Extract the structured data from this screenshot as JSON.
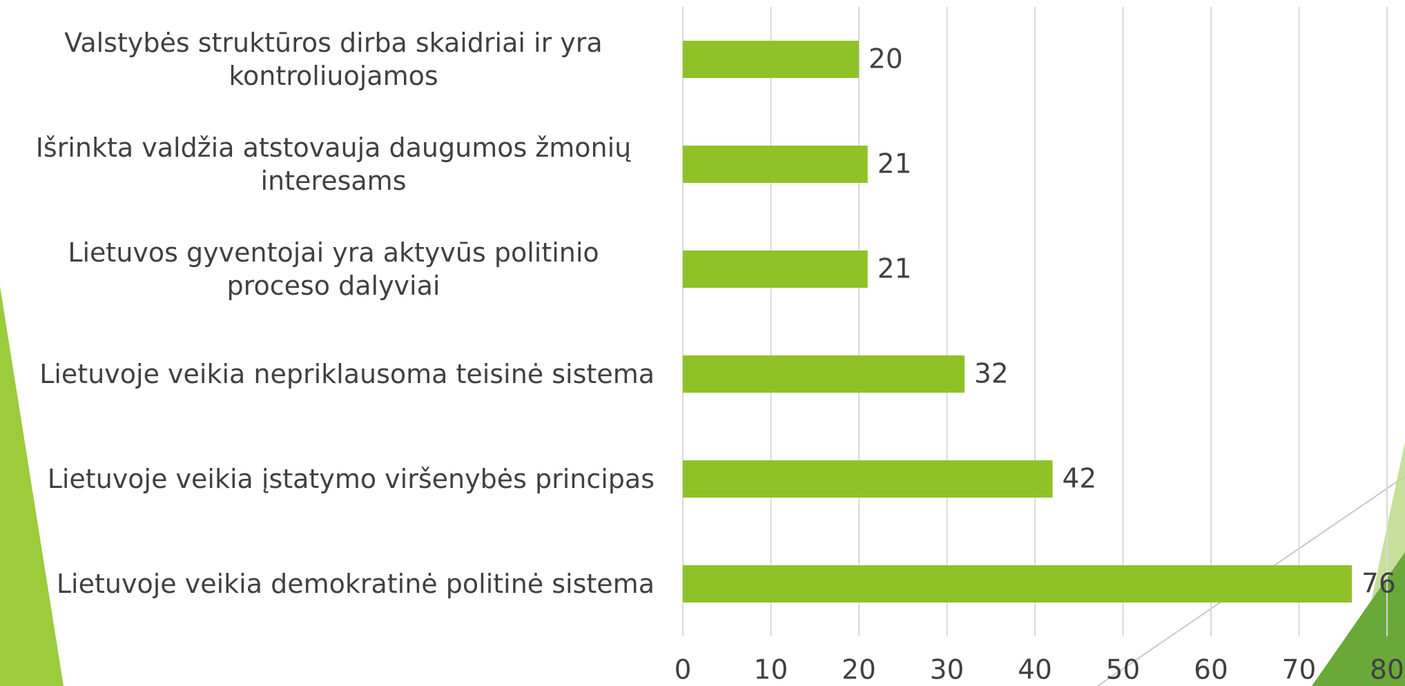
{
  "chart_data": {
    "type": "bar",
    "orientation": "horizontal",
    "categories": [
      "Valstybės struktūros dirba skaidriai ir yra kontroliuojamos",
      "Išrinkta valdžia atstovauja daugumos žmonių interesams",
      "Lietuvos gyventojai yra aktyvūs politinio proceso dalyviai",
      "Lietuvoje veikia nepriklausoma teisinė sistema",
      "Lietuvoje veikia įstatymo viršenybės principas",
      "Lietuvoje veikia demokratinė politinė sistema"
    ],
    "values": [
      20,
      21,
      21,
      32,
      42,
      76
    ],
    "color": "#8fc227",
    "xlim": [
      0,
      80
    ],
    "xticks": [
      0,
      10,
      20,
      30,
      40,
      50,
      60,
      70,
      80
    ],
    "grid": true
  }
}
